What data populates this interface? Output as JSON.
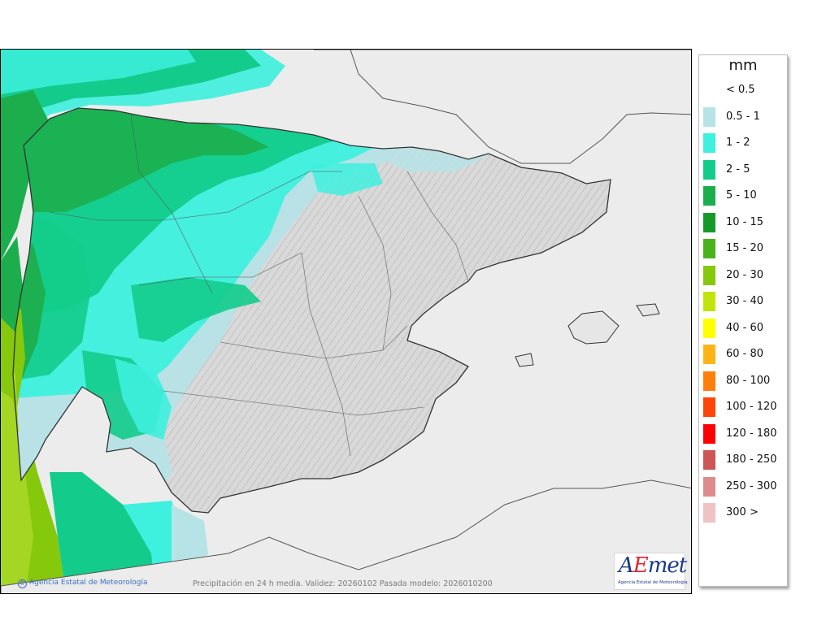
{
  "legend": {
    "title": "mm",
    "entries": [
      {
        "label": "< 0.5",
        "color": "#ffffff"
      },
      {
        "label": "0.5 - 1",
        "color": "#b6e3e6"
      },
      {
        "label": "1 - 2",
        "color": "#3ef0de"
      },
      {
        "label": "2 - 5",
        "color": "#13cc8b"
      },
      {
        "label": "5 - 10",
        "color": "#1cae4d"
      },
      {
        "label": "10 - 15",
        "color": "#159a2a"
      },
      {
        "label": "15 - 20",
        "color": "#4ab31c"
      },
      {
        "label": "20 - 30",
        "color": "#86c80c"
      },
      {
        "label": "30 - 40",
        "color": "#c1e40d"
      },
      {
        "label": "40 - 60",
        "color": "#ffff00"
      },
      {
        "label": "60 - 80",
        "color": "#ffb415"
      },
      {
        "label": "80 - 100",
        "color": "#ff7e0c"
      },
      {
        "label": "100 - 120",
        "color": "#ff4509"
      },
      {
        "label": "120 - 180",
        "color": "#ff0000"
      },
      {
        "label": "180 - 250",
        "color": "#cc5555"
      },
      {
        "label": "250 - 300",
        "color": "#dd8c8c"
      },
      {
        "label": "300 >",
        "color": "#efc3c3"
      }
    ]
  },
  "footer": {
    "credit": "Agencia Estatal de Meteorología",
    "caption": "Precipitación en 24 h media. Validez: 20260102 Pasada modelo: 2026010200"
  },
  "logo": {
    "brand_a": "A",
    "brand_e": "E",
    "brand_rest": "met",
    "subtitle": "Agencia Estatal de Meteorología"
  }
}
